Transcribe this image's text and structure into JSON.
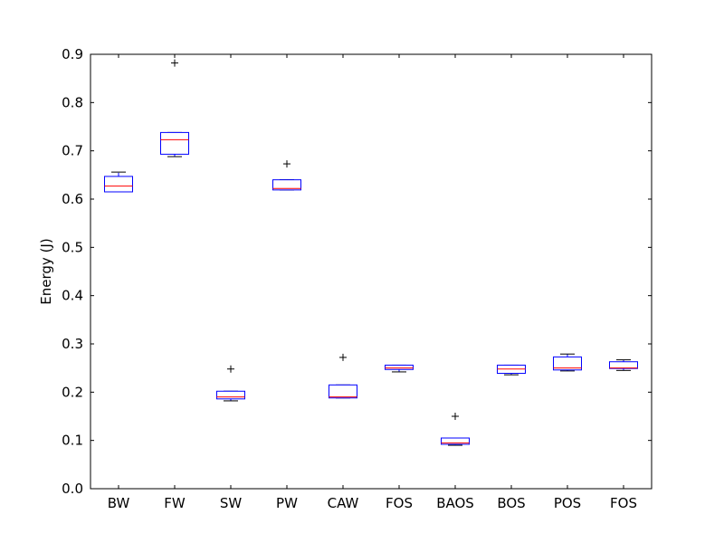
{
  "chart_data": {
    "type": "box",
    "title": "",
    "xlabel": "",
    "ylabel": "Energy (J)",
    "ylim": [
      0.0,
      0.9
    ],
    "yticks": [
      "0.0",
      "0.1",
      "0.2",
      "0.3",
      "0.4",
      "0.5",
      "0.6",
      "0.7",
      "0.8",
      "0.9"
    ],
    "grid": false,
    "colors": {
      "box": "#0000ff",
      "median": "#ff0000",
      "whisker": "#000000",
      "outlier": "#000000"
    },
    "categories": [
      "BW",
      "FW",
      "SW",
      "PW",
      "CAW",
      "FOS",
      "BAOS",
      "BOS",
      "POS",
      "FOS"
    ],
    "boxes": [
      {
        "whislo": 0.615,
        "q1": 0.615,
        "med": 0.627,
        "q3": 0.647,
        "whishi": 0.656,
        "fliers": []
      },
      {
        "whislo": 0.688,
        "q1": 0.693,
        "med": 0.723,
        "q3": 0.738,
        "whishi": 0.738,
        "fliers": [
          0.882
        ]
      },
      {
        "whislo": 0.182,
        "q1": 0.186,
        "med": 0.19,
        "q3": 0.202,
        "whishi": 0.202,
        "fliers": [
          0.248
        ]
      },
      {
        "whislo": 0.619,
        "q1": 0.619,
        "med": 0.622,
        "q3": 0.64,
        "whishi": 0.64,
        "fliers": [
          0.673
        ]
      },
      {
        "whislo": 0.188,
        "q1": 0.188,
        "med": 0.19,
        "q3": 0.215,
        "whishi": 0.215,
        "fliers": [
          0.272
        ]
      },
      {
        "whislo": 0.242,
        "q1": 0.247,
        "med": 0.25,
        "q3": 0.256,
        "whishi": 0.256,
        "fliers": []
      },
      {
        "whislo": 0.09,
        "q1": 0.092,
        "med": 0.095,
        "q3": 0.105,
        "whishi": 0.105,
        "fliers": [
          0.15
        ]
      },
      {
        "whislo": 0.236,
        "q1": 0.239,
        "med": 0.248,
        "q3": 0.256,
        "whishi": 0.256,
        "fliers": []
      },
      {
        "whislo": 0.244,
        "q1": 0.246,
        "med": 0.25,
        "q3": 0.273,
        "whishi": 0.279,
        "fliers": []
      },
      {
        "whislo": 0.245,
        "q1": 0.249,
        "med": 0.25,
        "q3": 0.263,
        "whishi": 0.267,
        "fliers": []
      }
    ]
  }
}
